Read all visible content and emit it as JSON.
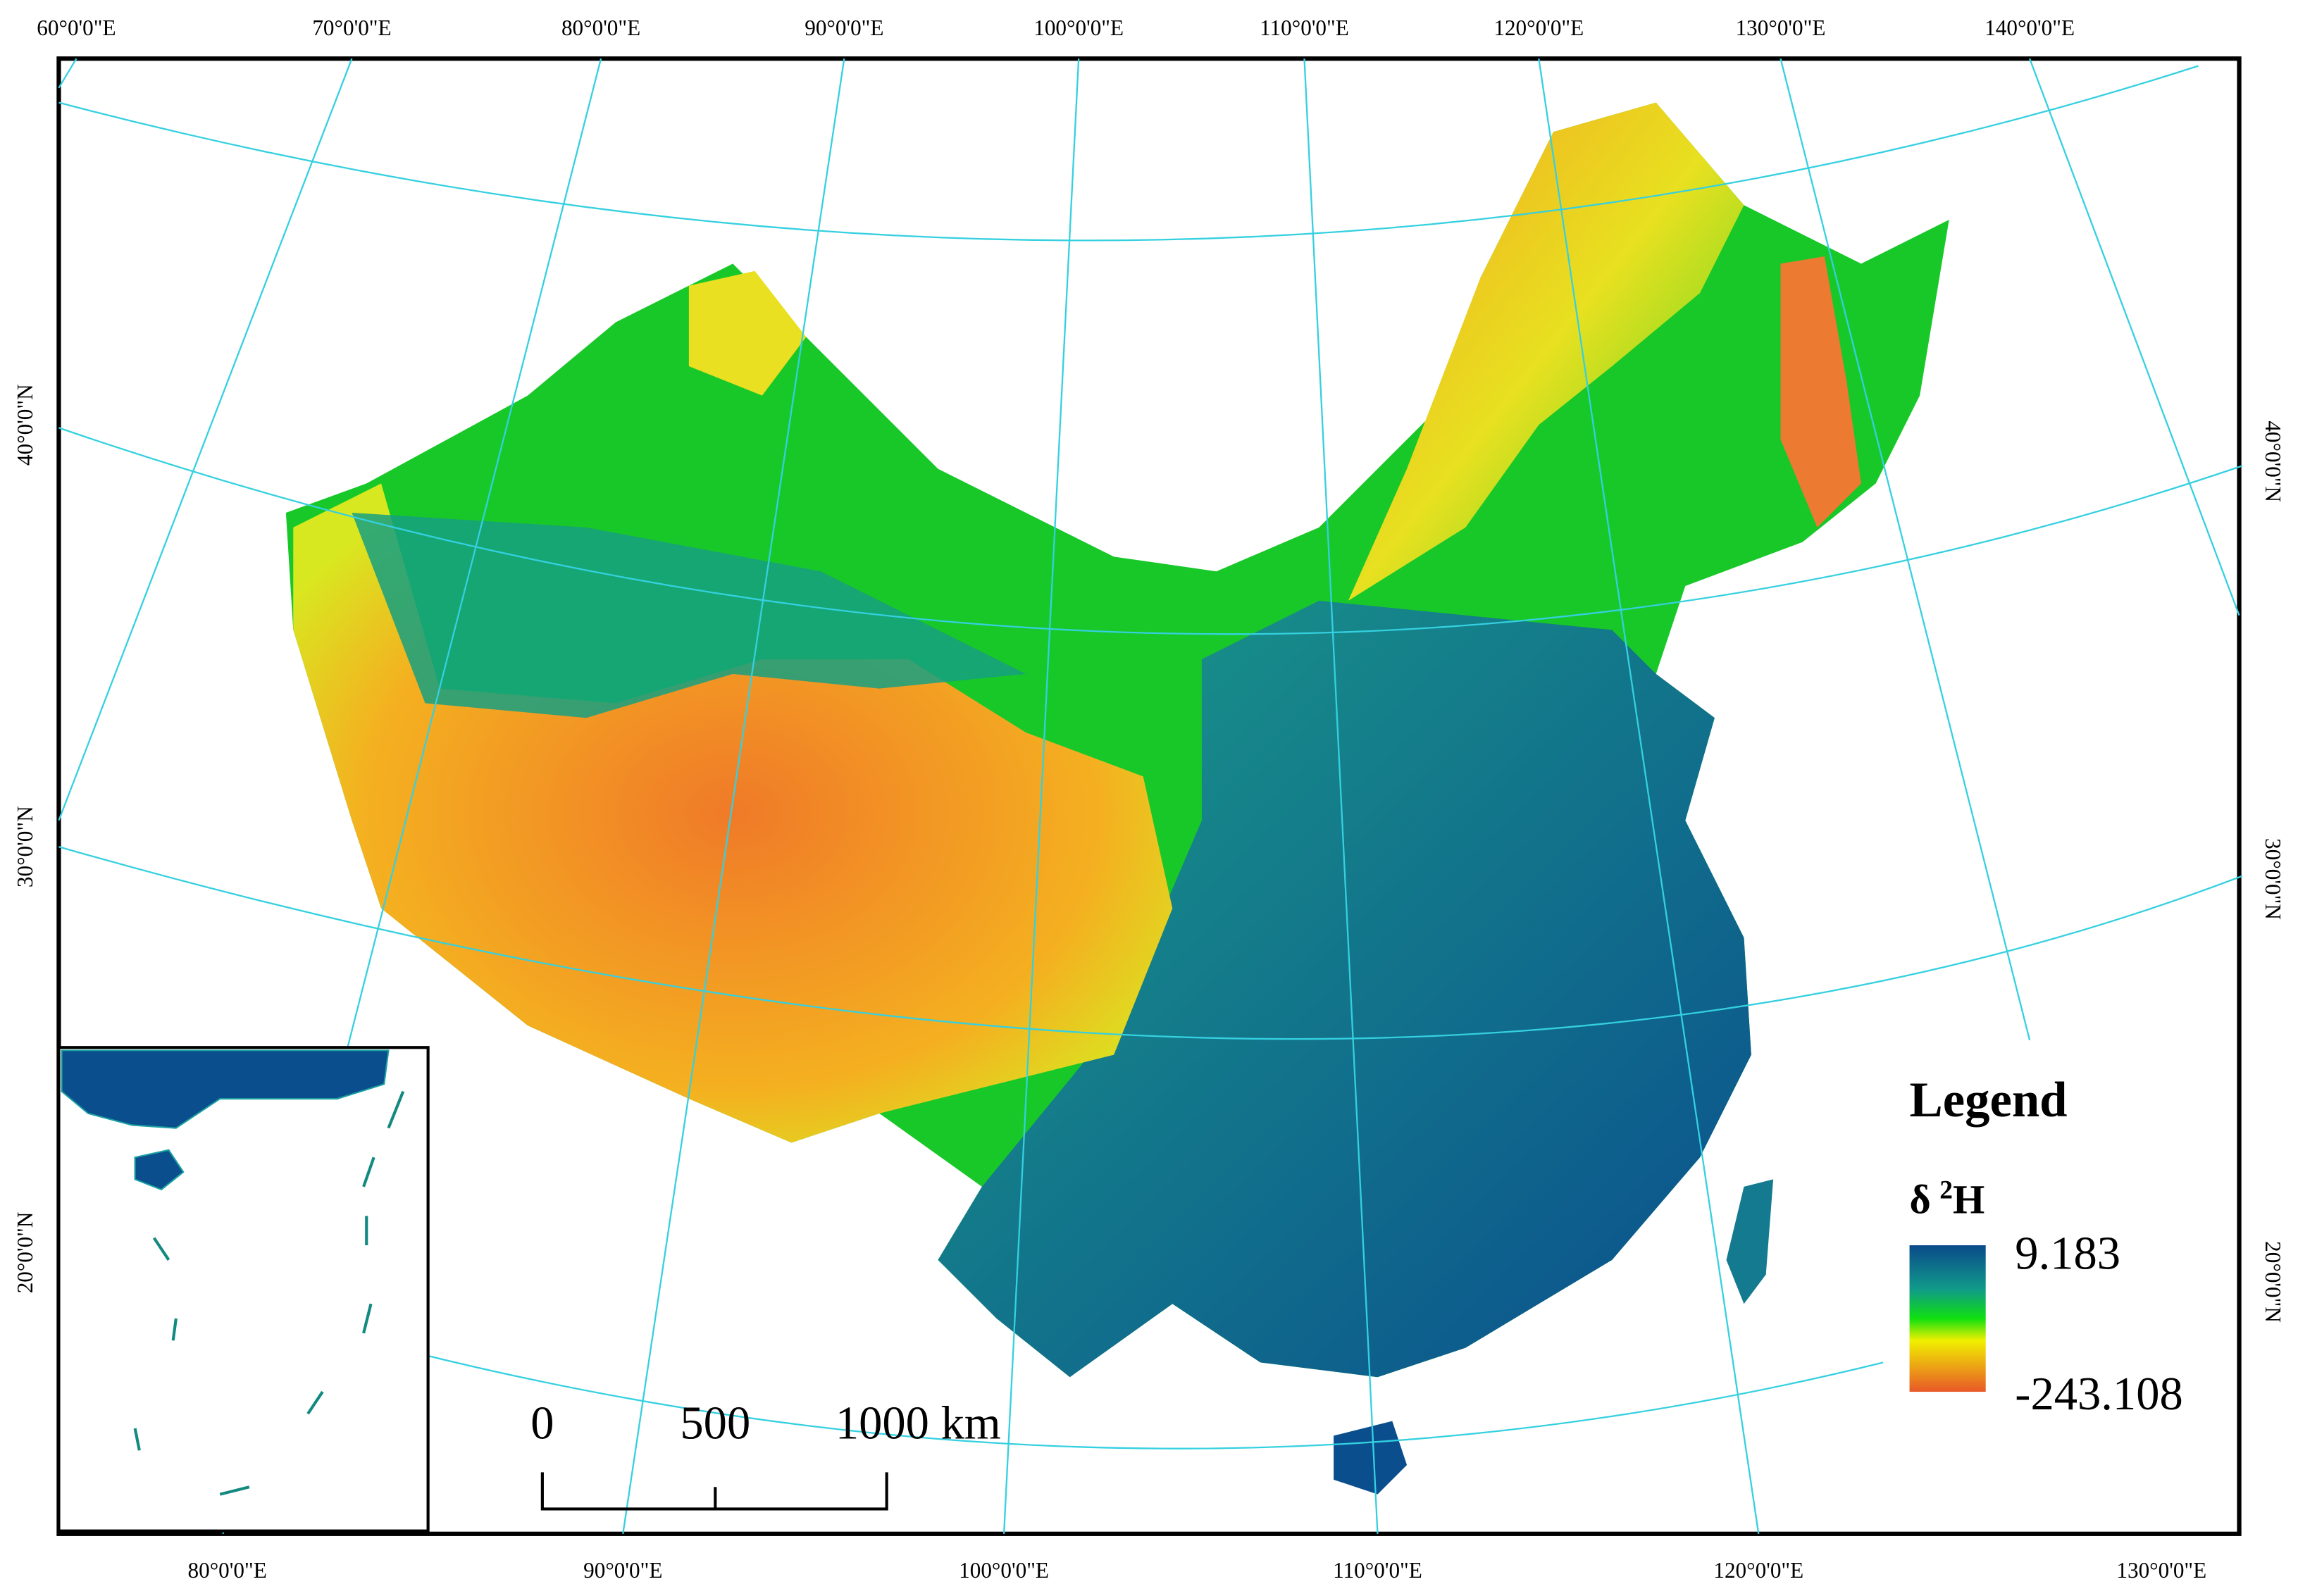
{
  "map": {
    "top_labels": [
      "60°0'0\"E",
      "70°0'0\"E",
      "80°0'0\"E",
      "90°0'0\"E",
      "100°0'0\"E",
      "110°0'0\"E",
      "120°0'0\"E",
      "130°0'0\"E",
      "140°0'0\"E"
    ],
    "bottom_labels": [
      "80°0'0\"E",
      "90°0'0\"E",
      "100°0'0\"E",
      "110°0'0\"E",
      "120°0'0\"E",
      "130°0'0\"E"
    ],
    "left_labels": [
      "40°0'0\"N",
      "30°0'0\"N",
      "20°0'0\"N"
    ],
    "right_labels": [
      "40°0'0\"N",
      "30°0'0\"N",
      "20°0'0\"N"
    ]
  },
  "legend": {
    "title": "Legend",
    "symbol": "δ",
    "superscript": "2",
    "letter": "H",
    "max": "9.183",
    "min": "-243.108"
  },
  "scale_bar": {
    "labels": [
      "0",
      "500",
      "1000 km"
    ]
  }
}
